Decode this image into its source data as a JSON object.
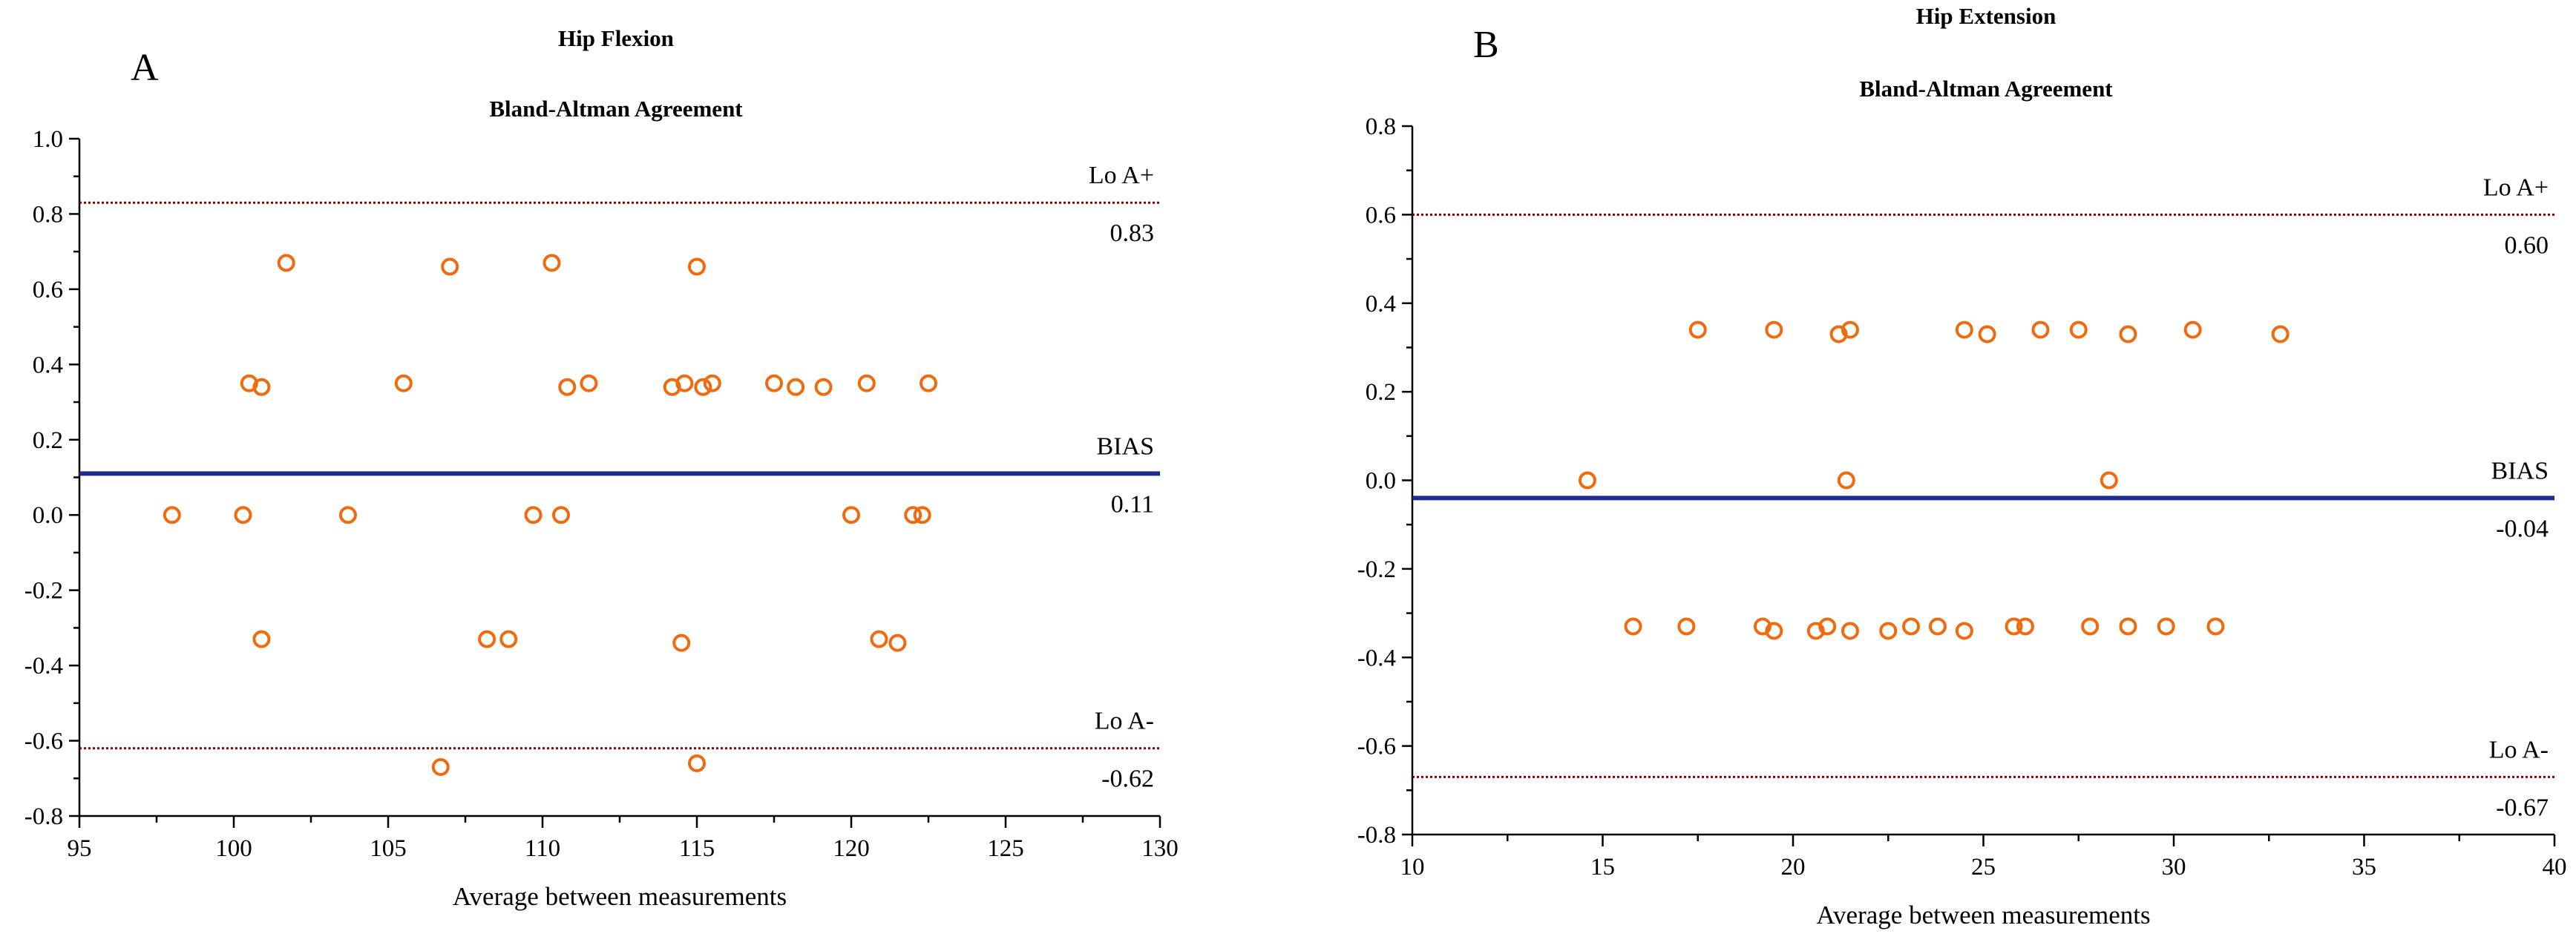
{
  "chart_data": [
    {
      "type": "scatter",
      "panel_label": "A",
      "title": "Hip Flexion",
      "subtitle": "Bland-Altman Agreement",
      "xlabel": "Average between measurements",
      "ylabel": "",
      "xlim": [
        95,
        130
      ],
      "ylim": [
        -0.8,
        1.0
      ],
      "x_ticks": [
        "95",
        "100",
        "105",
        "110",
        "115",
        "120",
        "125",
        "130"
      ],
      "y_ticks": [
        "-0.8",
        "-0.6",
        "-0.4",
        "-0.2",
        "0.0",
        "0.2",
        "0.4",
        "0.6",
        "0.8",
        "1.0"
      ],
      "lines": {
        "upper": {
          "name": "Lo A+",
          "value": 0.83,
          "value_label": "0.83",
          "color": "#8B0000"
        },
        "bias": {
          "name": "BIAS",
          "value": 0.11,
          "value_label": "0.11",
          "color": "#1F2A8F"
        },
        "lower": {
          "name": "Lo A-",
          "value": -0.62,
          "value_label": "-0.62",
          "color": "#8B0000"
        }
      },
      "marker_color": "#F06A10",
      "points": [
        [
          101.7,
          0.67
        ],
        [
          107.0,
          0.66
        ],
        [
          110.3,
          0.67
        ],
        [
          115.0,
          0.66
        ],
        [
          100.5,
          0.35
        ],
        [
          100.9,
          0.34
        ],
        [
          105.5,
          0.35
        ],
        [
          110.8,
          0.34
        ],
        [
          111.5,
          0.35
        ],
        [
          114.2,
          0.34
        ],
        [
          114.6,
          0.35
        ],
        [
          115.2,
          0.34
        ],
        [
          115.5,
          0.35
        ],
        [
          117.5,
          0.35
        ],
        [
          118.2,
          0.34
        ],
        [
          119.1,
          0.34
        ],
        [
          120.5,
          0.35
        ],
        [
          122.5,
          0.35
        ],
        [
          98.0,
          0.0
        ],
        [
          100.3,
          0.0
        ],
        [
          103.7,
          0.0
        ],
        [
          109.7,
          0.0
        ],
        [
          110.6,
          0.0
        ],
        [
          120.0,
          0.0
        ],
        [
          122.0,
          0.0
        ],
        [
          122.3,
          0.0
        ],
        [
          100.9,
          -0.33
        ],
        [
          108.2,
          -0.33
        ],
        [
          108.9,
          -0.33
        ],
        [
          114.5,
          -0.34
        ],
        [
          120.9,
          -0.33
        ],
        [
          121.5,
          -0.34
        ],
        [
          106.7,
          -0.67
        ],
        [
          115.0,
          -0.66
        ]
      ]
    },
    {
      "type": "scatter",
      "panel_label": "B",
      "title": "Hip Extension",
      "subtitle": "Bland-Altman Agreement",
      "xlabel": "Average between measurements",
      "ylabel": "",
      "xlim": [
        10,
        40
      ],
      "ylim": [
        -0.8,
        0.8
      ],
      "x_ticks": [
        "10",
        "15",
        "20",
        "25",
        "30",
        "35",
        "40"
      ],
      "y_ticks": [
        "-0.8",
        "-0.6",
        "-0.4",
        "-0.2",
        "0.0",
        "0.2",
        "0.4",
        "0.6",
        "0.8"
      ],
      "lines": {
        "upper": {
          "name": "Lo A+",
          "value": 0.6,
          "value_label": "0.60",
          "color": "#8B0000"
        },
        "bias": {
          "name": "BIAS",
          "value": -0.04,
          "value_label": "-0.04",
          "color": "#1F2A8F"
        },
        "lower": {
          "name": "Lo A-",
          "value": -0.67,
          "value_label": "-0.67",
          "color": "#8B0000"
        }
      },
      "marker_color": "#F06A10",
      "points": [
        [
          17.5,
          0.34
        ],
        [
          19.5,
          0.34
        ],
        [
          21.2,
          0.33
        ],
        [
          21.5,
          0.34
        ],
        [
          24.5,
          0.34
        ],
        [
          25.1,
          0.33
        ],
        [
          26.5,
          0.34
        ],
        [
          27.5,
          0.34
        ],
        [
          28.8,
          0.33
        ],
        [
          30.5,
          0.34
        ],
        [
          32.8,
          0.33
        ],
        [
          14.6,
          0.0
        ],
        [
          21.4,
          0.0
        ],
        [
          28.3,
          0.0
        ],
        [
          15.8,
          -0.33
        ],
        [
          17.2,
          -0.33
        ],
        [
          19.2,
          -0.33
        ],
        [
          19.5,
          -0.34
        ],
        [
          20.6,
          -0.34
        ],
        [
          20.9,
          -0.33
        ],
        [
          21.5,
          -0.34
        ],
        [
          22.5,
          -0.34
        ],
        [
          23.1,
          -0.33
        ],
        [
          23.8,
          -0.33
        ],
        [
          24.5,
          -0.34
        ],
        [
          25.8,
          -0.33
        ],
        [
          26.1,
          -0.33
        ],
        [
          27.8,
          -0.33
        ],
        [
          28.8,
          -0.33
        ],
        [
          29.8,
          -0.33
        ],
        [
          31.1,
          -0.33
        ]
      ]
    }
  ]
}
